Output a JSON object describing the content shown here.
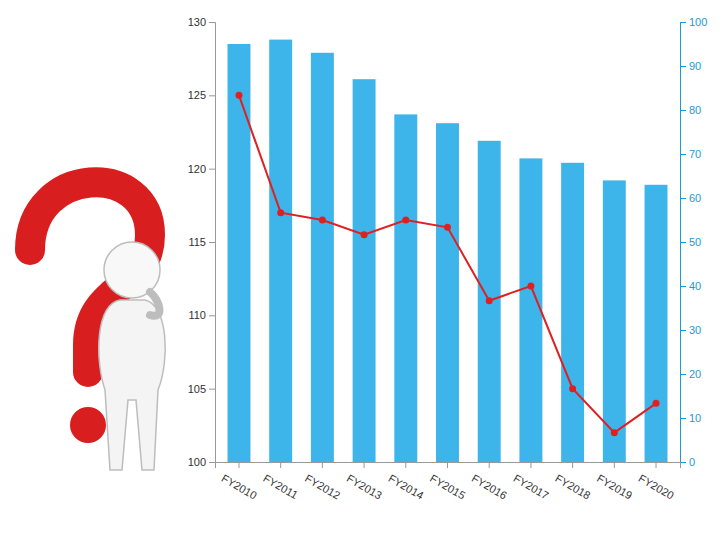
{
  "chart_data": {
    "type": "bar",
    "categories": [
      "FY2010",
      "FY2011",
      "FY2012",
      "FY2013",
      "FY2014",
      "FY2015",
      "FY2016",
      "FY2017",
      "FY2018",
      "FY2019",
      "FY2020"
    ],
    "ylim": [
      100,
      130
    ],
    "yticks": [
      100,
      105,
      110,
      115,
      120,
      125,
      130
    ],
    "y2lim": [
      0,
      100
    ],
    "y2ticks": [
      0,
      10,
      20,
      30,
      40,
      50,
      60,
      70,
      80,
      90,
      100
    ],
    "series": [
      {
        "type": "bar",
        "color": "#3db5ea",
        "axis": "y2",
        "values": [
          95,
          96,
          93,
          87,
          79,
          77,
          73,
          69,
          68,
          64,
          63
        ]
      },
      {
        "type": "line",
        "color": "#e02020",
        "marker": "circle",
        "values": [
          125,
          117,
          116.5,
          115.5,
          116.5,
          116,
          111,
          112,
          105,
          102,
          104
        ]
      }
    ]
  }
}
